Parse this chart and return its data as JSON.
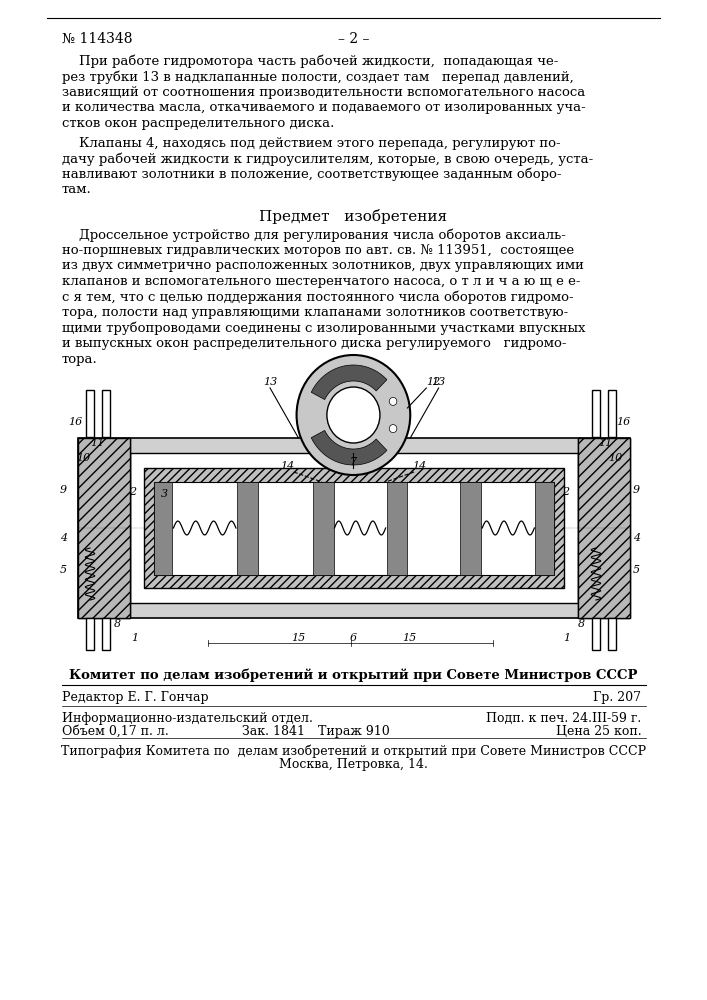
{
  "background_color": "#ffffff",
  "page_number_left": "№ 114348",
  "page_number_center": "– 2 –",
  "section_title": "Предмет   изобретения",
  "committee_line": "Комитет по делам изобретений и открытий при Совете Министров СССР",
  "editor_line": "Редактор Е. Г. Гончар",
  "gr_line": "Гр. 207",
  "info_line1": "Информационно-издательский отдел.",
  "podp_line": "Подп. к печ. 24.III-59 г.",
  "info_line2": "Объем 0,17 п. л.",
  "zak_line": "Зак. 1841",
  "tirazh_line": "Тираж 910",
  "cena_line": "Цена 25 коп.",
  "typography_line1": "Типография Комитета по  делам изобретений и открытий при Совете Министров СССР",
  "typography_line2": "Москва, Петровка, 14.",
  "para1_lines": [
    "    При работе гидромотора часть рабочей жидкости,  попадающая че-",
    "рез трубки 13 в надклапанные полости, создает там   перепад давлений,",
    "зависящий от соотношения производительности вспомогательного насоса",
    "и количества масла, откачиваемого и подаваемого от изолированных уча-",
    "стков окон распределительного диска."
  ],
  "para2_lines": [
    "    Клапаны 4, находясь под действием этого перепада, регулируют по-",
    "дачу рабочей жидкости к гидроусилителям, которые, в свою очередь, уста-",
    "навливают золотники в положение, соответствующее заданным оборо-",
    "там."
  ],
  "claim_lines": [
    "    Дроссельное устройство для регулирования числа оборотов аксиаль-",
    "но-поршневых гидравлических моторов по авт. св. № 113951,  состоящее",
    "из двух симметрично расположенных золотников, двух управляющих ими",
    "клапанов и вспомогательного шестеренчатого насоса, о т л и ч а ю щ е е-",
    "с я тем, что с целью поддержания постоянного числа оборотов гидромо-",
    "тора, полости над управляющими клапанами золотников соответствую-",
    "щими трубопроводами соединены с изолированными участками впускных",
    "и выпускных окон распределительного диска регулируемого   гидромо-",
    "тора."
  ]
}
